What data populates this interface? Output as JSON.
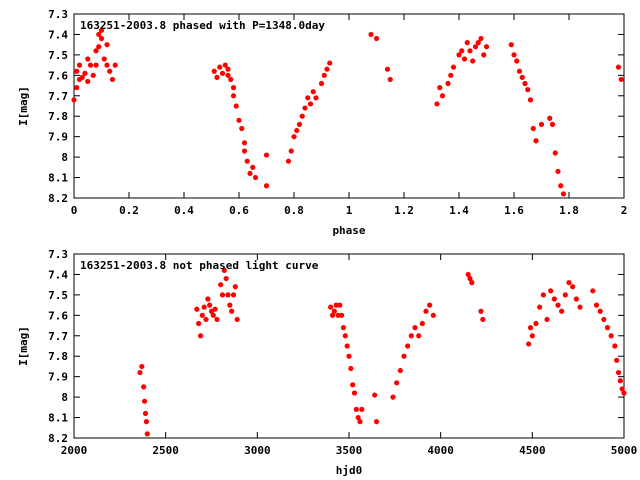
{
  "chart_data": [
    {
      "type": "scatter",
      "title": "163251-2003.8 phased with P=1348.0day",
      "xlabel": "phase",
      "ylabel": "I[mag]",
      "xlim": [
        0,
        2
      ],
      "ylim": [
        8.2,
        7.3
      ],
      "y_inverted": true,
      "x_ticks": [
        0,
        0.2,
        0.4,
        0.6,
        0.8,
        1,
        1.2,
        1.4,
        1.6,
        1.8,
        2
      ],
      "x_tick_labels": [
        "0",
        "0.2",
        "0.4",
        "0.6",
        "0.8",
        "1",
        "1.2",
        "1.4",
        "1.6",
        "1.8",
        "2"
      ],
      "y_ticks": [
        7.3,
        7.4,
        7.5,
        7.6,
        7.7,
        7.8,
        7.9,
        8,
        8.1,
        8.2
      ],
      "y_tick_labels": [
        "7.3",
        "7.4",
        "7.5",
        "7.6",
        "7.7",
        "7.8",
        "7.9",
        "8",
        "8.1",
        "8.2"
      ],
      "grid": false,
      "color": "#ff0000",
      "x": [
        0.0,
        0.01,
        0.01,
        0.02,
        0.02,
        0.03,
        0.04,
        0.05,
        0.05,
        0.06,
        0.07,
        0.08,
        0.08,
        0.09,
        0.09,
        0.1,
        0.1,
        0.11,
        0.12,
        0.12,
        0.13,
        0.14,
        0.15,
        0.51,
        0.52,
        0.53,
        0.54,
        0.55,
        0.56,
        0.56,
        0.57,
        0.58,
        0.58,
        0.59,
        0.6,
        0.61,
        0.62,
        0.62,
        0.63,
        0.64,
        0.65,
        0.66,
        0.7,
        0.7,
        0.78,
        0.79,
        0.8,
        0.81,
        0.82,
        0.83,
        0.84,
        0.85,
        0.86,
        0.87,
        0.88,
        0.9,
        0.91,
        0.92,
        0.93,
        1.08,
        1.1,
        1.14,
        1.15,
        1.32,
        1.33,
        1.34,
        1.36,
        1.37,
        1.38,
        1.4,
        1.41,
        1.42,
        1.43,
        1.44,
        1.45,
        1.46,
        1.47,
        1.48,
        1.49,
        1.5,
        1.59,
        1.6,
        1.61,
        1.62,
        1.63,
        1.64,
        1.65,
        1.66,
        1.67,
        1.68,
        1.7,
        1.73,
        1.74,
        1.75,
        1.76,
        1.77,
        1.78,
        1.98,
        1.99
      ],
      "y": [
        7.72,
        7.66,
        7.58,
        7.62,
        7.55,
        7.61,
        7.59,
        7.63,
        7.52,
        7.55,
        7.6,
        7.48,
        7.55,
        7.4,
        7.46,
        7.38,
        7.42,
        7.52,
        7.45,
        7.55,
        7.58,
        7.62,
        7.55,
        7.58,
        7.61,
        7.56,
        7.59,
        7.55,
        7.6,
        7.57,
        7.62,
        7.66,
        7.7,
        7.75,
        7.82,
        7.86,
        7.93,
        7.97,
        8.02,
        8.08,
        8.05,
        8.1,
        7.99,
        8.14,
        8.02,
        7.97,
        7.9,
        7.87,
        7.84,
        7.8,
        7.76,
        7.71,
        7.74,
        7.68,
        7.71,
        7.64,
        7.6,
        7.57,
        7.54,
        7.4,
        7.42,
        7.57,
        7.62,
        7.74,
        7.66,
        7.7,
        7.64,
        7.6,
        7.56,
        7.5,
        7.48,
        7.52,
        7.44,
        7.48,
        7.53,
        7.46,
        7.44,
        7.42,
        7.5,
        7.46,
        7.45,
        7.5,
        7.53,
        7.58,
        7.61,
        7.64,
        7.67,
        7.72,
        7.86,
        7.92,
        7.84,
        7.81,
        7.84,
        7.98,
        8.07,
        8.14,
        8.18,
        7.56,
        7.62
      ]
    },
    {
      "type": "scatter",
      "title": "163251-2003.8 not phased light curve",
      "xlabel": "hjd0",
      "ylabel": "I[mag]",
      "xlim": [
        2000,
        5000
      ],
      "ylim": [
        8.2,
        7.3
      ],
      "y_inverted": true,
      "x_ticks": [
        2000,
        2500,
        3000,
        3500,
        4000,
        4500,
        5000
      ],
      "x_tick_labels": [
        "2000",
        "2500",
        "3000",
        "3500",
        "4000",
        "4500",
        "5000"
      ],
      "y_ticks": [
        7.3,
        7.4,
        7.5,
        7.6,
        7.7,
        7.8,
        7.9,
        8,
        8.1,
        8.2
      ],
      "y_tick_labels": [
        "7.3",
        "7.4",
        "7.5",
        "7.6",
        "7.7",
        "7.8",
        "7.9",
        "8",
        "8.1",
        "8.2"
      ],
      "grid": false,
      "color": "#ff0000",
      "x": [
        2360,
        2370,
        2380,
        2385,
        2390,
        2395,
        2400,
        2670,
        2680,
        2690,
        2700,
        2710,
        2720,
        2730,
        2740,
        2750,
        2760,
        2770,
        2780,
        2800,
        2810,
        2820,
        2830,
        2840,
        2850,
        2860,
        2870,
        2880,
        2890,
        3400,
        3410,
        3420,
        3430,
        3440,
        3450,
        3460,
        3470,
        3480,
        3490,
        3500,
        3510,
        3520,
        3530,
        3540,
        3550,
        3560,
        3570,
        3640,
        3650,
        3740,
        3760,
        3780,
        3800,
        3820,
        3840,
        3860,
        3880,
        3900,
        3920,
        3940,
        3960,
        4150,
        4160,
        4170,
        4220,
        4230,
        4480,
        4490,
        4500,
        4520,
        4540,
        4560,
        4580,
        4600,
        4620,
        4640,
        4660,
        4680,
        4700,
        4720,
        4740,
        4760,
        4830,
        4850,
        4870,
        4890,
        4910,
        4930,
        4950,
        4960,
        4970,
        4980,
        4990,
        5000
      ],
      "y": [
        7.88,
        7.85,
        7.95,
        8.02,
        8.08,
        8.12,
        8.18,
        7.57,
        7.64,
        7.7,
        7.6,
        7.56,
        7.62,
        7.52,
        7.55,
        7.58,
        7.6,
        7.57,
        7.62,
        7.45,
        7.5,
        7.38,
        7.42,
        7.5,
        7.55,
        7.58,
        7.5,
        7.46,
        7.62,
        7.56,
        7.6,
        7.58,
        7.55,
        7.6,
        7.55,
        7.6,
        7.66,
        7.7,
        7.75,
        7.8,
        7.86,
        7.94,
        7.98,
        8.06,
        8.1,
        8.12,
        8.06,
        7.99,
        8.12,
        8.0,
        7.93,
        7.87,
        7.8,
        7.75,
        7.7,
        7.66,
        7.7,
        7.64,
        7.58,
        7.55,
        7.6,
        7.4,
        7.42,
        7.44,
        7.58,
        7.62,
        7.74,
        7.66,
        7.7,
        7.64,
        7.56,
        7.5,
        7.62,
        7.48,
        7.52,
        7.55,
        7.58,
        7.5,
        7.44,
        7.46,
        7.52,
        7.56,
        7.48,
        7.55,
        7.58,
        7.62,
        7.66,
        7.7,
        7.75,
        7.82,
        7.88,
        7.92,
        7.96,
        7.98
      ]
    }
  ]
}
